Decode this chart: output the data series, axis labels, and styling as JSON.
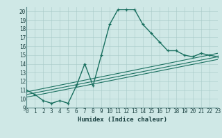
{
  "xlabel": "Humidex (Indice chaleur)",
  "xlim": [
    0,
    23
  ],
  "ylim": [
    9,
    20.5
  ],
  "yticks": [
    9,
    10,
    11,
    12,
    13,
    14,
    15,
    16,
    17,
    18,
    19,
    20
  ],
  "xticks": [
    0,
    1,
    2,
    3,
    4,
    5,
    6,
    7,
    8,
    9,
    10,
    11,
    12,
    13,
    14,
    15,
    16,
    17,
    18,
    19,
    20,
    21,
    22,
    23
  ],
  "bg_color": "#cfe8e6",
  "line_color": "#1a7060",
  "main_line": {
    "x": [
      0,
      1,
      2,
      3,
      4,
      5,
      6,
      7,
      8,
      9,
      10,
      11,
      12,
      13,
      14,
      15,
      16,
      17,
      18,
      19,
      20,
      21,
      22,
      23
    ],
    "y": [
      11.0,
      10.5,
      9.8,
      9.5,
      9.8,
      9.5,
      11.5,
      14.0,
      11.5,
      15.0,
      18.5,
      20.2,
      20.2,
      20.2,
      18.5,
      17.5,
      16.5,
      15.5,
      15.5,
      15.0,
      14.8,
      15.2,
      15.0,
      14.8
    ]
  },
  "lower_lines": [
    {
      "x": [
        0,
        23
      ],
      "y": [
        10.8,
        15.2
      ]
    },
    {
      "x": [
        0,
        23
      ],
      "y": [
        10.5,
        14.8
      ]
    },
    {
      "x": [
        0,
        23
      ],
      "y": [
        10.2,
        14.5
      ]
    }
  ],
  "tick_fontsize": 5.5,
  "xlabel_fontsize": 6.5
}
